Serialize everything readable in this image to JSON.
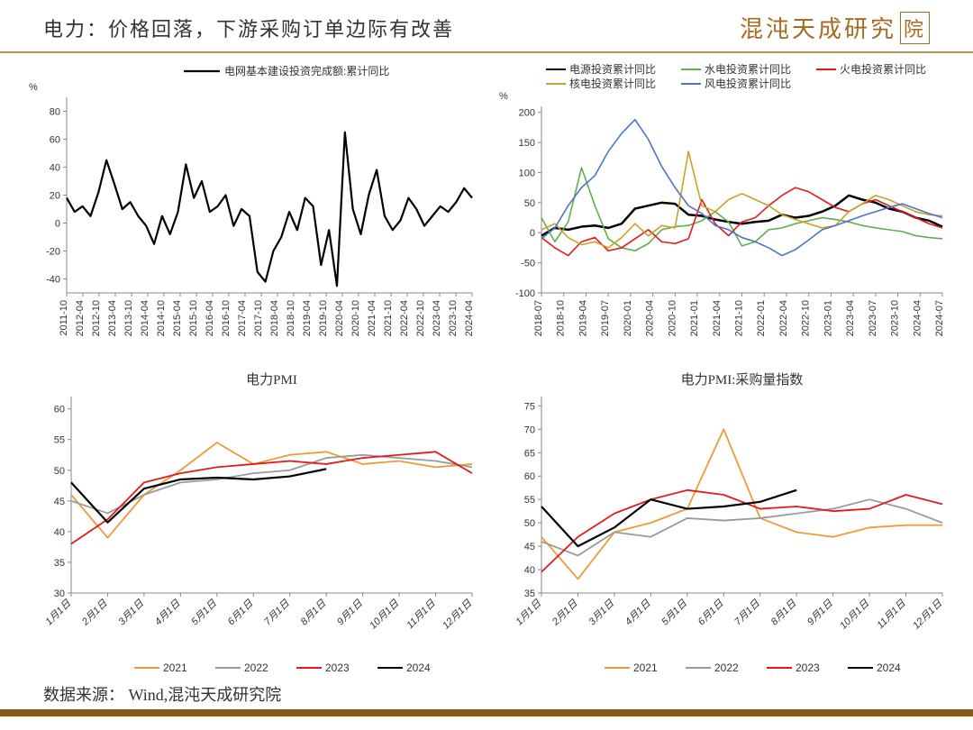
{
  "header": {
    "title": "电力：价格回落，下游采购订单边际有改善",
    "logo_text": "混沌天成研究",
    "logo_suffix": "院"
  },
  "footer": {
    "source": "数据来源：  Wind,混沌天成研究院"
  },
  "colors": {
    "black": "#000000",
    "grey": "#9a9a9a",
    "red": "#e31a1a",
    "orange": "#ec9b36",
    "green": "#5fb04a",
    "gold": "#c9a227",
    "blue": "#4a76c7",
    "axis": "#888888",
    "tick": "#666666"
  },
  "chart1": {
    "legend": "电网基本建设投资完成额:累计同比",
    "y_unit": "%",
    "ylim": [
      -50,
      90
    ],
    "yticks": [
      -40,
      -20,
      0,
      20,
      40,
      60,
      80
    ],
    "xlabels": [
      "2011-10",
      "2012-04",
      "2012-10",
      "2013-04",
      "2013-10",
      "2014-04",
      "2014-10",
      "2015-04",
      "2015-10",
      "2016-04",
      "2016-10",
      "2017-04",
      "2017-10",
      "2018-04",
      "2018-10",
      "2019-04",
      "2019-10",
      "2020-04",
      "2020-10",
      "2021-04",
      "2021-10",
      "2022-04",
      "2022-10",
      "2023-04",
      "2023-10",
      "2024-04"
    ],
    "series": [
      {
        "color": "#000000",
        "width": 2.2,
        "data": [
          18,
          8,
          12,
          5,
          22,
          45,
          28,
          10,
          15,
          5,
          -2,
          -15,
          5,
          -8,
          8,
          42,
          18,
          30,
          8,
          12,
          20,
          -2,
          10,
          5,
          -35,
          -42,
          -20,
          -10,
          8,
          -5,
          18,
          12,
          -30,
          -5,
          -45,
          65,
          10,
          -8,
          20,
          38,
          5,
          -5,
          2,
          18,
          10,
          -2,
          5,
          12,
          8,
          15,
          25,
          18
        ]
      }
    ]
  },
  "chart2": {
    "y_unit": "%",
    "ylim": [
      -100,
      210
    ],
    "yticks": [
      -100,
      -50,
      0,
      50,
      100,
      150,
      200
    ],
    "xlabels": [
      "2018-07",
      "2018-10",
      "2019-04",
      "2019-07",
      "2020-01",
      "2020-04",
      "2020-10",
      "2021-01",
      "2021-04",
      "2021-10",
      "2022-01",
      "2022-04",
      "2022-10",
      "2023-01",
      "2023-04",
      "2023-07",
      "2023-10",
      "2024-04",
      "2024-07"
    ],
    "legend_items": [
      {
        "color": "#000000",
        "label": "电源投资累计同比"
      },
      {
        "color": "#5fb04a",
        "label": "水电投资累计同比"
      },
      {
        "color": "#e31a1a",
        "label": "火电投资累计同比"
      },
      {
        "color": "#c9a227",
        "label": "核电投资累计同比"
      },
      {
        "color": "#4a76c7",
        "label": "风电投资累计同比"
      }
    ],
    "series": [
      {
        "color": "#000000",
        "width": 2.5,
        "data": [
          -5,
          8,
          5,
          10,
          12,
          8,
          15,
          40,
          45,
          50,
          48,
          30,
          28,
          22,
          18,
          15,
          18,
          20,
          30,
          25,
          28,
          35,
          45,
          62,
          55,
          50,
          40,
          35,
          25,
          20,
          10
        ]
      },
      {
        "color": "#5fb04a",
        "width": 1.6,
        "data": [
          25,
          -15,
          18,
          108,
          45,
          -10,
          -25,
          -30,
          -18,
          5,
          10,
          12,
          20,
          35,
          18,
          -22,
          -15,
          5,
          8,
          15,
          20,
          25,
          22,
          18,
          12,
          8,
          5,
          2,
          -5,
          -8,
          -10
        ]
      },
      {
        "color": "#e31a1a",
        "width": 1.6,
        "data": [
          -8,
          -25,
          -38,
          -15,
          -8,
          -30,
          -25,
          -10,
          5,
          -15,
          -18,
          -10,
          55,
          15,
          -5,
          18,
          25,
          45,
          62,
          75,
          68,
          55,
          42,
          35,
          48,
          55,
          45,
          35,
          25,
          15,
          8
        ]
      },
      {
        "color": "#c9a227",
        "width": 1.6,
        "data": [
          5,
          15,
          -8,
          -20,
          -15,
          -25,
          -8,
          15,
          -5,
          12,
          8,
          135,
          45,
          35,
          55,
          65,
          55,
          45,
          30,
          22,
          15,
          8,
          12,
          35,
          48,
          62,
          55,
          45,
          35,
          30,
          28
        ]
      },
      {
        "color": "#4a76c7",
        "width": 1.6,
        "data": [
          -10,
          8,
          45,
          75,
          95,
          135,
          165,
          188,
          155,
          110,
          75,
          45,
          32,
          12,
          5,
          -8,
          -15,
          -25,
          -38,
          -28,
          -12,
          5,
          12,
          20,
          28,
          35,
          42,
          48,
          40,
          32,
          25
        ]
      }
    ]
  },
  "chart3": {
    "title": "电力PMI",
    "ylim": [
      30,
      62
    ],
    "yticks": [
      30,
      35,
      40,
      45,
      50,
      55,
      60
    ],
    "xlabels": [
      "1月1日",
      "2月1日",
      "3月1日",
      "4月1日",
      "5月1日",
      "6月1日",
      "7月1日",
      "8月1日",
      "9月1日",
      "10月1日",
      "11月1日",
      "12月1日"
    ],
    "legend_items": [
      {
        "color": "#ec9b36",
        "label": "2021"
      },
      {
        "color": "#9a9a9a",
        "label": "2022"
      },
      {
        "color": "#e31a1a",
        "label": "2023"
      },
      {
        "color": "#000000",
        "label": "2024"
      }
    ],
    "series": [
      {
        "color": "#ec9b36",
        "width": 1.8,
        "data": [
          46,
          39,
          46,
          50,
          54.5,
          51,
          52.5,
          53,
          51,
          51.5,
          50.5,
          51
        ]
      },
      {
        "color": "#9a9a9a",
        "width": 1.8,
        "data": [
          45,
          43,
          46,
          48,
          48.5,
          49.5,
          50,
          52,
          52.5,
          52,
          51.5,
          50.5
        ]
      },
      {
        "color": "#e31a1a",
        "width": 1.8,
        "data": [
          38,
          42,
          48,
          49.5,
          50.5,
          51,
          51.5,
          51,
          52,
          52.5,
          53,
          49.5
        ]
      },
      {
        "color": "#000000",
        "width": 2.2,
        "data": [
          48,
          41.5,
          47,
          48.5,
          48.8,
          48.5,
          49,
          50.2
        ]
      }
    ]
  },
  "chart4": {
    "title": "电力PMI:采购量指数",
    "ylim": [
      35,
      77
    ],
    "yticks": [
      35,
      40,
      45,
      50,
      55,
      60,
      65,
      70,
      75
    ],
    "xlabels": [
      "1月1日",
      "2月1日",
      "3月1日",
      "4月1日",
      "5月1日",
      "6月1日",
      "7月1日",
      "8月1日",
      "9月1日",
      "10月1日",
      "11月1日",
      "12月1日"
    ],
    "legend_items": [
      {
        "color": "#ec9b36",
        "label": "2021"
      },
      {
        "color": "#9a9a9a",
        "label": "2022"
      },
      {
        "color": "#e31a1a",
        "label": "2023"
      },
      {
        "color": "#000000",
        "label": "2024"
      }
    ],
    "series": [
      {
        "color": "#ec9b36",
        "width": 1.8,
        "data": [
          47,
          38,
          48,
          50,
          53,
          70,
          51,
          48,
          47,
          49,
          49.5,
          49.5
        ]
      },
      {
        "color": "#9a9a9a",
        "width": 1.8,
        "data": [
          46,
          43,
          48,
          47,
          51,
          50.5,
          51,
          52,
          53,
          55,
          53,
          50
        ]
      },
      {
        "color": "#e31a1a",
        "width": 1.8,
        "data": [
          39.5,
          47,
          52,
          55,
          57,
          56,
          53,
          53.5,
          52.5,
          53,
          56,
          54
        ]
      },
      {
        "color": "#000000",
        "width": 2.2,
        "data": [
          53.5,
          45,
          49,
          55,
          53,
          53.5,
          54.5,
          57
        ]
      }
    ]
  }
}
